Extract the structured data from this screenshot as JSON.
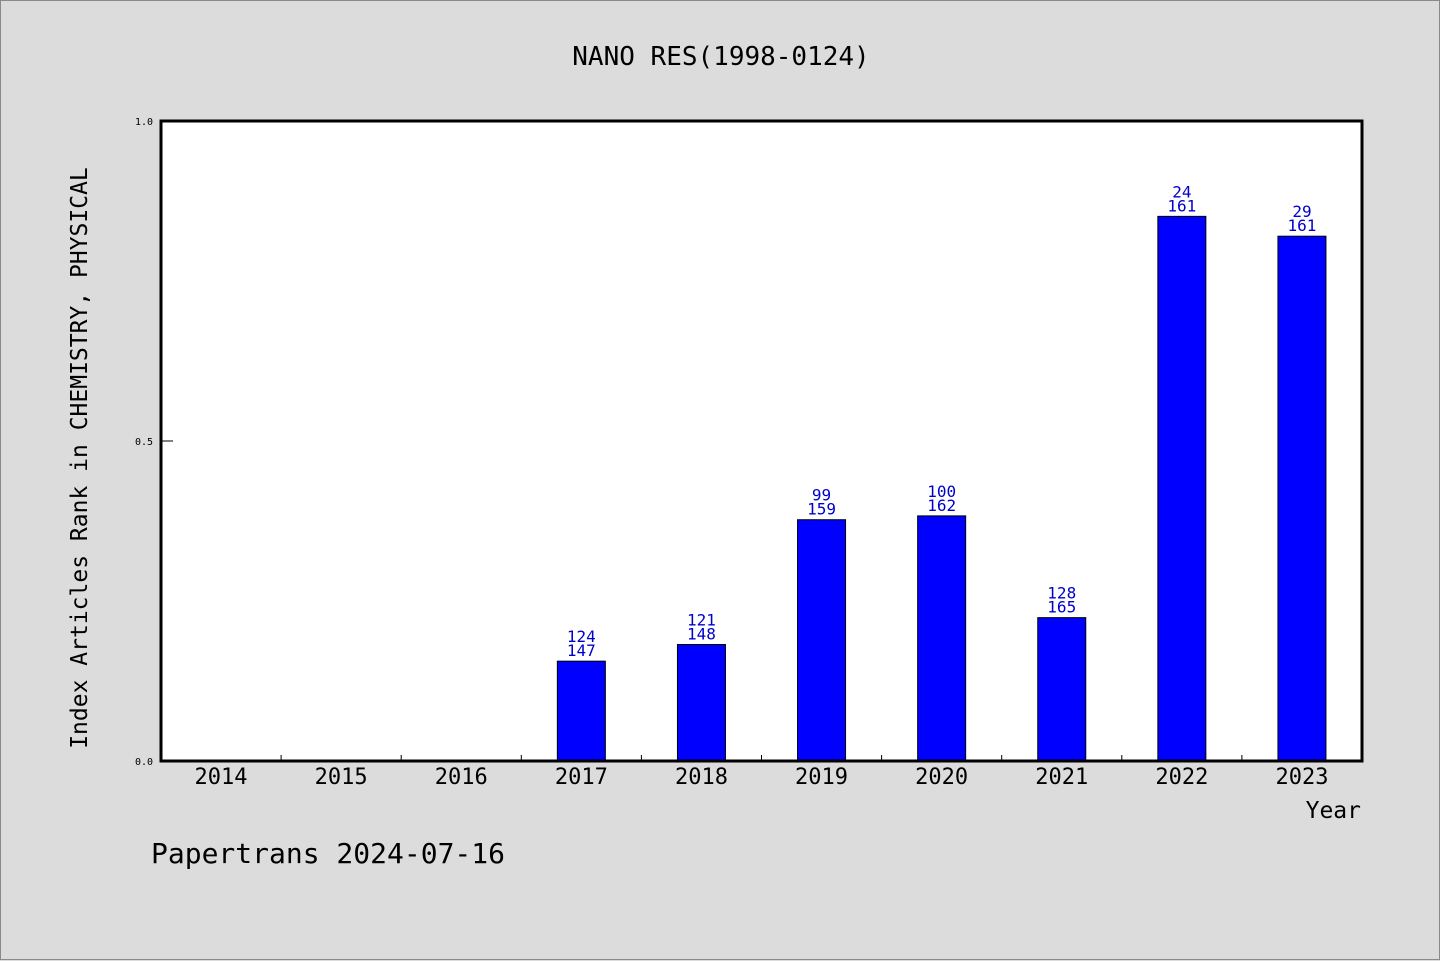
{
  "chart_data": {
    "type": "bar",
    "title": "NANO RES(1998-0124)",
    "xlabel": "Year",
    "ylabel": "Index Articles Rank in CHEMISTRY, PHYSICAL",
    "ylim": [
      0,
      1
    ],
    "yticks": [
      "0.0",
      "0.5",
      "1.0"
    ],
    "ytick_values": [
      0,
      0.5,
      1
    ],
    "grid": false,
    "categories": [
      "2014",
      "2015",
      "2016",
      "2017",
      "2018",
      "2019",
      "2020",
      "2021",
      "2022",
      "2023"
    ],
    "values": [
      null,
      null,
      null,
      0.156,
      0.182,
      0.377,
      0.383,
      0.224,
      0.851,
      0.82
    ],
    "bar_labels": [
      null,
      null,
      null,
      [
        "124",
        "147"
      ],
      [
        "121",
        "148"
      ],
      [
        "99",
        "159"
      ],
      [
        "100",
        "162"
      ],
      [
        "128",
        "165"
      ],
      [
        "24",
        "161"
      ],
      [
        "29",
        "161"
      ]
    ],
    "bar_color": "#0000ff",
    "label_color": "#0000cc"
  },
  "footer": "Papertrans 2024-07-16"
}
